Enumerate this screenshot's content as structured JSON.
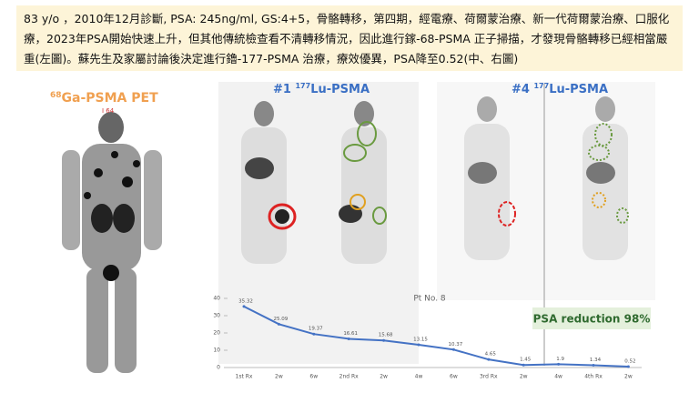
{
  "header": {
    "text": "83 y/o ，2010年12月診斷, PSA: 245ng/ml, GS:4+5，骨骼轉移，第四期，經電療、荷爾蒙治療、新一代荷爾蒙治療、口服化療，2023年PSA開始快速上升，但其他傳統檢查看不清轉移情況，因此進行鎵-68-PSMA 正子掃描，才發現骨骼轉移已經相當嚴重(左圖)。蘇先生及家屬討論後決定進行鑥-177-PSMA 治療，療效優異，PSA降至0.52(中、右圖)"
  },
  "images": [
    {
      "label_sup": "68",
      "label": "Ga-PSMA PET",
      "marker": "I 64"
    },
    {
      "prefix": "#1",
      "label_sup": "177",
      "label": "Lu-PSMA"
    },
    {
      "prefix": "#4",
      "label_sup": "177",
      "label": "Lu-PSMA"
    }
  ],
  "chart_data": {
    "type": "line",
    "title": "Pt No. 8",
    "annotation": "PSA reduction 98%",
    "categories": [
      "1st Rx",
      "2w",
      "6w",
      "2nd Rx",
      "2w",
      "4w",
      "6w",
      "3rd Rx",
      "2w",
      "4w",
      "4th Rx",
      "2w"
    ],
    "values": [
      35.32,
      25.09,
      19.37,
      16.61,
      15.68,
      13.15,
      10.37,
      4.65,
      1.45,
      1.9,
      1.34,
      0.52
    ],
    "color": "#4472c4",
    "ylim": [
      0,
      40
    ],
    "yticks": [
      0,
      10,
      20,
      30,
      40
    ],
    "grid": false
  }
}
